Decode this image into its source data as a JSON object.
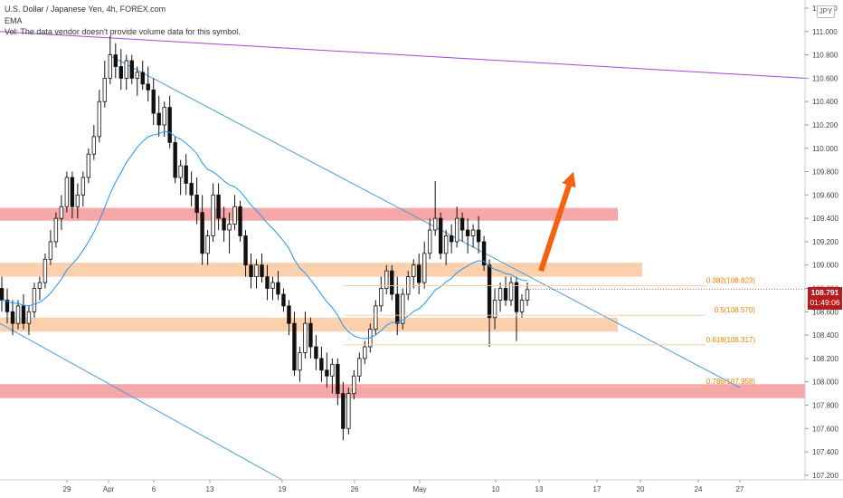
{
  "header": {
    "symbol_line": "U.S. Dollar / Japanese Yen, 4h, FOREX.com",
    "indicator_line": "EMA",
    "volume_note": "Vol: The data vendor doesn't provide volume data for this symbol."
  },
  "currency_badge": "JPY",
  "last_price": {
    "value": "108.791",
    "countdown": "01:49:06",
    "color": "#b71c1c"
  },
  "colors": {
    "candle": "#111111",
    "ema": "#2196f3",
    "trendline": "#4a9fd8",
    "upper_line": "#a346d6",
    "zone_red": "#f6a8a8",
    "zone_orange": "#fbd1ad",
    "fib_label": "#f57c00",
    "arrow": "#f4610f"
  },
  "chart_data": {
    "type": "candlestick",
    "timeframe": "4h",
    "y_axis": {
      "range": [
        107.16,
        111.27
      ],
      "ticks": [
        "111.200",
        "111.000",
        "110.800",
        "110.600",
        "110.400",
        "110.200",
        "110.000",
        "109.800",
        "109.600",
        "109.400",
        "109.200",
        "109.000",
        "108.800",
        "108.600",
        "108.400",
        "108.200",
        "108.000",
        "107.800",
        "107.600",
        "107.400",
        "107.200"
      ]
    },
    "x_axis": {
      "ticks": [
        "29",
        "Apr",
        "6",
        "13",
        "19",
        "26",
        "May",
        "10",
        "13",
        "17",
        "20",
        "24",
        "27"
      ]
    },
    "last_price": 108.791,
    "candles": [
      [
        108.8,
        108.9,
        108.6,
        108.7
      ],
      [
        108.7,
        108.8,
        108.5,
        108.6
      ],
      [
        108.6,
        108.7,
        108.4,
        108.5
      ],
      [
        108.5,
        108.7,
        108.45,
        108.65
      ],
      [
        108.65,
        108.75,
        108.45,
        108.5
      ],
      [
        108.5,
        108.65,
        108.4,
        108.6
      ],
      [
        108.6,
        108.85,
        108.55,
        108.8
      ],
      [
        108.8,
        108.9,
        108.7,
        108.85
      ],
      [
        108.85,
        109.1,
        108.8,
        109.05
      ],
      [
        109.05,
        109.3,
        109.0,
        109.2
      ],
      [
        109.2,
        109.45,
        109.15,
        109.4
      ],
      [
        109.4,
        109.6,
        109.3,
        109.5
      ],
      [
        109.5,
        109.8,
        109.45,
        109.75
      ],
      [
        109.75,
        109.8,
        109.4,
        109.5
      ],
      [
        109.5,
        109.7,
        109.4,
        109.6
      ],
      [
        109.6,
        109.8,
        109.5,
        109.75
      ],
      [
        109.75,
        110.0,
        109.7,
        109.95
      ],
      [
        109.95,
        110.2,
        109.9,
        110.1
      ],
      [
        110.1,
        110.5,
        110.05,
        110.4
      ],
      [
        110.4,
        110.75,
        110.35,
        110.6
      ],
      [
        110.6,
        110.96,
        110.55,
        110.8
      ],
      [
        110.8,
        110.9,
        110.6,
        110.7
      ],
      [
        110.7,
        110.85,
        110.5,
        110.6
      ],
      [
        110.6,
        110.8,
        110.5,
        110.75
      ],
      [
        110.75,
        110.8,
        110.55,
        110.6
      ],
      [
        110.6,
        110.7,
        110.45,
        110.65
      ],
      [
        110.65,
        110.75,
        110.5,
        110.55
      ],
      [
        110.55,
        110.7,
        110.4,
        110.5
      ],
      [
        110.5,
        110.6,
        110.2,
        110.3
      ],
      [
        110.3,
        110.45,
        110.1,
        110.2
      ],
      [
        110.2,
        110.4,
        110.1,
        110.35
      ],
      [
        110.35,
        110.45,
        110.0,
        110.05
      ],
      [
        110.05,
        110.1,
        109.7,
        109.75
      ],
      [
        109.75,
        109.9,
        109.6,
        109.85
      ],
      [
        109.85,
        109.95,
        109.6,
        109.7
      ],
      [
        109.7,
        109.8,
        109.5,
        109.6
      ],
      [
        109.6,
        109.75,
        109.35,
        109.45
      ],
      [
        109.45,
        109.6,
        109.0,
        109.1
      ],
      [
        109.1,
        109.3,
        109.0,
        109.25
      ],
      [
        109.25,
        109.7,
        109.2,
        109.6
      ],
      [
        109.6,
        109.7,
        109.3,
        109.4
      ],
      [
        109.4,
        109.5,
        109.2,
        109.3
      ],
      [
        109.3,
        109.45,
        109.1,
        109.35
      ],
      [
        109.35,
        109.6,
        109.3,
        109.5
      ],
      [
        109.5,
        109.55,
        109.2,
        109.25
      ],
      [
        109.25,
        109.3,
        108.9,
        109.0
      ],
      [
        109.0,
        109.1,
        108.8,
        108.9
      ],
      [
        108.9,
        109.05,
        108.8,
        109.0
      ],
      [
        109.0,
        109.1,
        108.85,
        108.9
      ],
      [
        108.9,
        109.0,
        108.7,
        108.8
      ],
      [
        108.8,
        108.9,
        108.7,
        108.85
      ],
      [
        108.85,
        108.95,
        108.7,
        108.75
      ],
      [
        108.75,
        108.8,
        108.6,
        108.65
      ],
      [
        108.65,
        108.7,
        108.4,
        108.5
      ],
      [
        108.5,
        108.6,
        108.05,
        108.1
      ],
      [
        108.1,
        108.3,
        108.0,
        108.25
      ],
      [
        108.25,
        108.6,
        108.2,
        108.5
      ],
      [
        108.5,
        108.55,
        108.2,
        108.3
      ],
      [
        108.3,
        108.4,
        108.1,
        108.2
      ],
      [
        108.2,
        108.3,
        108.0,
        108.1
      ],
      [
        108.1,
        108.25,
        107.95,
        108.05
      ],
      [
        108.05,
        108.2,
        107.9,
        108.15
      ],
      [
        108.15,
        108.2,
        107.8,
        107.9
      ],
      [
        107.9,
        108.0,
        107.5,
        107.6
      ],
      [
        107.6,
        107.95,
        107.55,
        107.9
      ],
      [
        107.9,
        108.1,
        107.85,
        108.05
      ],
      [
        108.05,
        108.25,
        108.0,
        108.2
      ],
      [
        108.2,
        108.35,
        108.15,
        108.3
      ],
      [
        108.3,
        108.5,
        108.25,
        108.45
      ],
      [
        108.45,
        108.7,
        108.4,
        108.65
      ],
      [
        108.65,
        108.9,
        108.6,
        108.8
      ],
      [
        108.8,
        109.0,
        108.75,
        108.95
      ],
      [
        108.95,
        109.0,
        108.7,
        108.75
      ],
      [
        108.75,
        108.9,
        108.4,
        108.5
      ],
      [
        108.5,
        108.8,
        108.45,
        108.75
      ],
      [
        108.75,
        108.95,
        108.7,
        108.9
      ],
      [
        108.9,
        109.05,
        108.8,
        109.0
      ],
      [
        109.0,
        109.1,
        108.75,
        108.85
      ],
      [
        108.85,
        109.2,
        108.8,
        109.1
      ],
      [
        109.1,
        109.4,
        109.05,
        109.3
      ],
      [
        109.3,
        109.72,
        109.25,
        109.4
      ],
      [
        109.4,
        109.45,
        109.05,
        109.1
      ],
      [
        109.1,
        109.3,
        109.0,
        109.25
      ],
      [
        109.25,
        109.35,
        109.1,
        109.2
      ],
      [
        109.2,
        109.5,
        109.15,
        109.4
      ],
      [
        109.4,
        109.45,
        109.2,
        109.3
      ],
      [
        109.3,
        109.4,
        109.1,
        109.25
      ],
      [
        109.25,
        109.35,
        109.15,
        109.3
      ],
      [
        109.3,
        109.42,
        109.1,
        109.2
      ],
      [
        109.2,
        109.25,
        108.95,
        109.0
      ],
      [
        109.0,
        109.05,
        108.3,
        108.55
      ],
      [
        108.55,
        108.8,
        108.45,
        108.7
      ],
      [
        108.7,
        108.85,
        108.6,
        108.8
      ],
      [
        108.8,
        108.9,
        108.65,
        108.7
      ],
      [
        108.7,
        108.9,
        108.65,
        108.85
      ],
      [
        108.85,
        108.9,
        108.35,
        108.6
      ],
      [
        108.6,
        108.75,
        108.55,
        108.7
      ],
      [
        108.7,
        108.85,
        108.65,
        108.79
      ]
    ],
    "ema_period_note": "",
    "zones": [
      {
        "kind": "red",
        "low": 109.38,
        "high": 109.49
      },
      {
        "kind": "orange",
        "low": 108.9,
        "high": 109.02
      },
      {
        "kind": "orange",
        "low": 108.43,
        "high": 108.55
      },
      {
        "kind": "red",
        "low": 107.86,
        "high": 107.98
      }
    ],
    "fib_levels": [
      {
        "label": "0.382(108.823)",
        "price": 108.823
      },
      {
        "label": "0.5(108.570)",
        "price": 108.57
      },
      {
        "label": "0.618(108.317)",
        "price": 108.317
      },
      {
        "label": "0.786(107.958)",
        "price": 107.958
      }
    ],
    "trendlines": [
      {
        "name": "upper",
        "from": [
          "start",
          111.0
        ],
        "to": [
          "end",
          110.6
        ]
      },
      {
        "name": "descending",
        "from": [
          "Apr",
          110.8
        ],
        "to": [
          "27",
          107.95
        ]
      },
      {
        "name": "channel-lower",
        "from": [
          "start",
          108.5
        ],
        "to": [
          "19",
          107.16
        ]
      }
    ],
    "projection_arrow": {
      "from_price": 108.95,
      "to_price": 109.8
    }
  }
}
